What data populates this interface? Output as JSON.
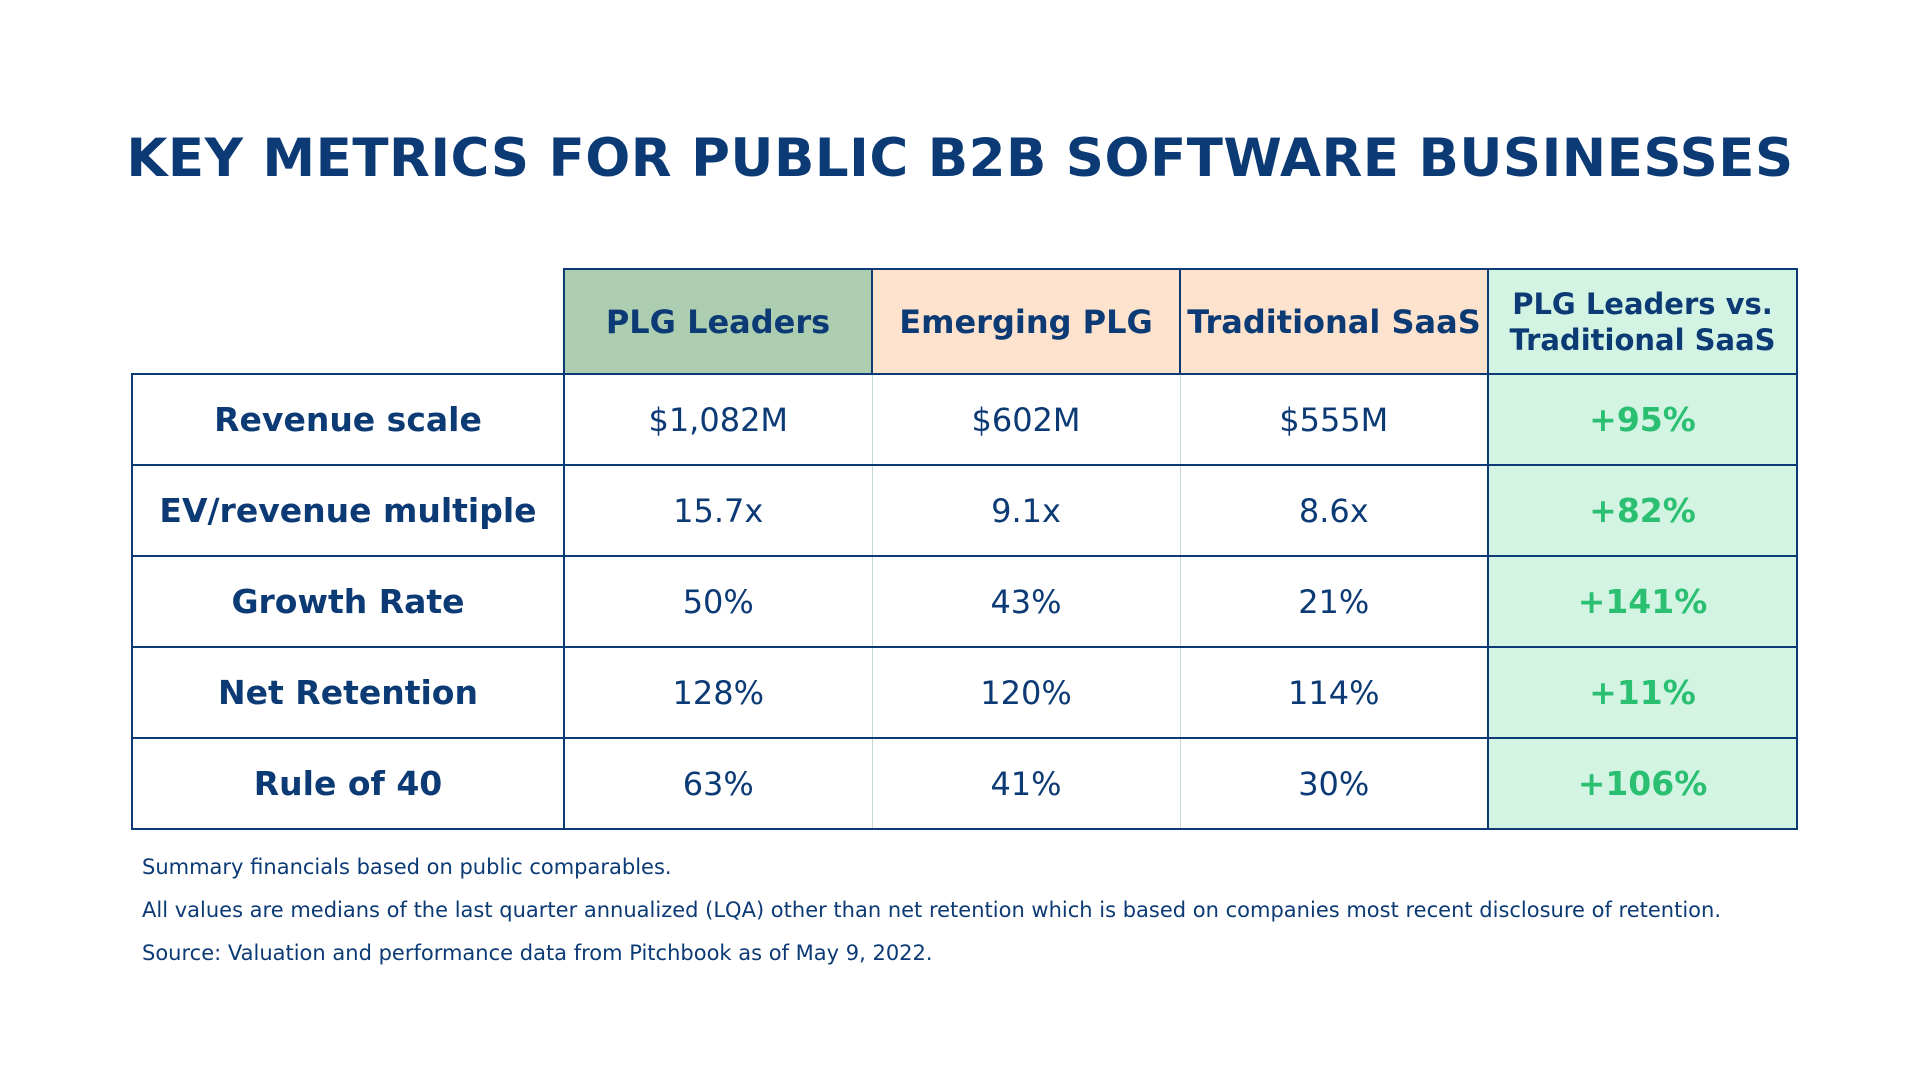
{
  "title": "KEY METRICS FOR PUBLIC B2B SOFTWARE BUSINESSES",
  "colors": {
    "navy": "#0b3a75",
    "plg_leaders_header": "#adcdb0",
    "emerging_header": "#fde3cd",
    "traditional_header": "#fde3cd",
    "delta_fill": "#d3f4e3",
    "delta_text": "#2bbf72"
  },
  "chart_data": {
    "type": "table",
    "title": "KEY METRICS FOR PUBLIC B2B SOFTWARE BUSINESSES",
    "columns": [
      "PLG Leaders",
      "Emerging PLG",
      "Traditional SaaS",
      "PLG Leaders vs. Traditional SaaS"
    ],
    "rows": [
      {
        "label": "Revenue scale",
        "values": [
          "$1,082M",
          "$602M",
          "$555M",
          "+95%"
        ]
      },
      {
        "label": "EV/revenue multiple",
        "values": [
          "15.7x",
          "9.1x",
          "8.6x",
          "+82%"
        ]
      },
      {
        "label": "Growth Rate",
        "values": [
          "50%",
          "43%",
          "21%",
          "+141%"
        ]
      },
      {
        "label": "Net Retention",
        "values": [
          "128%",
          "120%",
          "114%",
          "+11%"
        ]
      },
      {
        "label": "Rule of 40",
        "values": [
          "63%",
          "41%",
          "30%",
          "+106%"
        ]
      }
    ],
    "notes": [
      "Summary financials based on public comparables.",
      "All values are medians of the last quarter annualized (LQA) other than net retention which is based on companies most recent disclosure of retention.",
      "Source: Valuation and performance data from Pitchbook as of May 9, 2022."
    ]
  }
}
